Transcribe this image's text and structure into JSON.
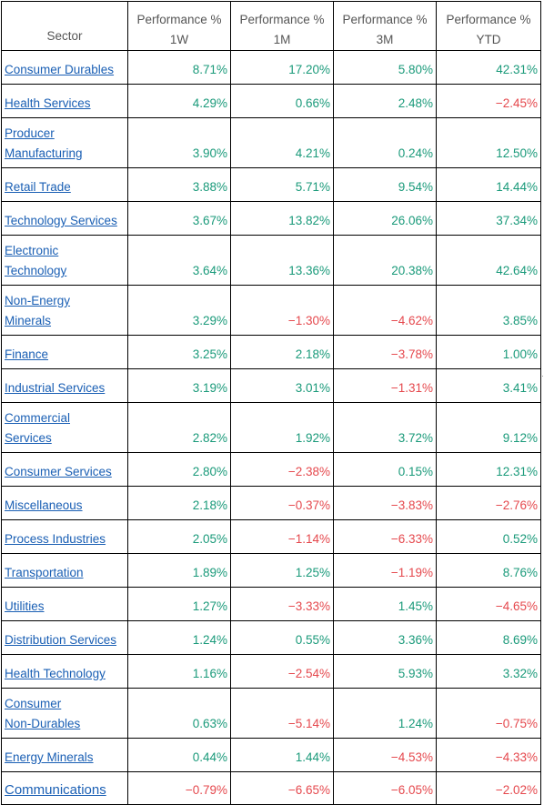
{
  "headers": {
    "sector": "Sector",
    "perf_1w": [
      "Performance %",
      "1W"
    ],
    "perf_1m": [
      "Performance %",
      "1M"
    ],
    "perf_3m": [
      "Performance %",
      "3M"
    ],
    "perf_ytd": [
      "Performance %",
      "YTD"
    ]
  },
  "rows": [
    {
      "sector": [
        "Consumer Durables"
      ],
      "w1": "8.71%",
      "m1": "17.20%",
      "m3": "5.80%",
      "ytd": "42.31%"
    },
    {
      "sector": [
        "Health Services"
      ],
      "w1": "4.29%",
      "m1": "0.66%",
      "m3": "2.48%",
      "ytd": "−2.45%"
    },
    {
      "sector": [
        "Producer",
        "Manufacturing"
      ],
      "w1": "3.90%",
      "m1": "4.21%",
      "m3": "0.24%",
      "ytd": "12.50%"
    },
    {
      "sector": [
        "Retail Trade"
      ],
      "w1": "3.88%",
      "m1": "5.71%",
      "m3": "9.54%",
      "ytd": "14.44%"
    },
    {
      "sector": [
        "Technology Services"
      ],
      "w1": "3.67%",
      "m1": "13.82%",
      "m3": "26.06%",
      "ytd": "37.34%"
    },
    {
      "sector": [
        "Electronic",
        "Technology"
      ],
      "w1": "3.64%",
      "m1": "13.36%",
      "m3": "20.38%",
      "ytd": "42.64%"
    },
    {
      "sector": [
        "Non-Energy",
        "Minerals"
      ],
      "w1": "3.29%",
      "m1": "−1.30%",
      "m3": "−4.62%",
      "ytd": "3.85%"
    },
    {
      "sector": [
        "Finance"
      ],
      "w1": "3.25%",
      "m1": "2.18%",
      "m3": "−3.78%",
      "ytd": "1.00%"
    },
    {
      "sector": [
        "Industrial Services"
      ],
      "w1": "3.19%",
      "m1": "3.01%",
      "m3": "−1.31%",
      "ytd": "3.41%"
    },
    {
      "sector": [
        "Commercial",
        "Services"
      ],
      "w1": "2.82%",
      "m1": "1.92%",
      "m3": "3.72%",
      "ytd": "9.12%"
    },
    {
      "sector": [
        "Consumer Services"
      ],
      "w1": "2.80%",
      "m1": "−2.38%",
      "m3": "0.15%",
      "ytd": "12.31%"
    },
    {
      "sector": [
        "Miscellaneous"
      ],
      "w1": "2.18%",
      "m1": "−0.37%",
      "m3": "−3.83%",
      "ytd": "−2.76%"
    },
    {
      "sector": [
        "Process Industries"
      ],
      "w1": "2.05%",
      "m1": "−1.14%",
      "m3": "−6.33%",
      "ytd": "0.52%"
    },
    {
      "sector": [
        "Transportation"
      ],
      "w1": "1.89%",
      "m1": "1.25%",
      "m3": "−1.19%",
      "ytd": "8.76%"
    },
    {
      "sector": [
        "Utilities"
      ],
      "w1": "1.27%",
      "m1": "−3.33%",
      "m3": "1.45%",
      "ytd": "−4.65%"
    },
    {
      "sector": [
        "Distribution Services"
      ],
      "w1": "1.24%",
      "m1": "0.55%",
      "m3": "3.36%",
      "ytd": "8.69%"
    },
    {
      "sector": [
        "Health Technology"
      ],
      "w1": "1.16%",
      "m1": "−2.54%",
      "m3": "5.93%",
      "ytd": "3.32%"
    },
    {
      "sector": [
        "Consumer",
        "Non-Durables"
      ],
      "w1": "0.63%",
      "m1": "−5.14%",
      "m3": "1.24%",
      "ytd": "−0.75%"
    },
    {
      "sector": [
        "Energy Minerals"
      ],
      "w1": "0.44%",
      "m1": "1.44%",
      "m3": "−4.53%",
      "ytd": "−4.33%"
    },
    {
      "sector": [
        "Communications"
      ],
      "w1": "−0.79%",
      "m1": "−6.65%",
      "m3": "−6.05%",
      "ytd": "−2.02%"
    }
  ],
  "colors": {
    "positive": "#1a9a7a",
    "negative": "#e5484d",
    "link": "#1a5fb4",
    "header_text": "#555555"
  }
}
